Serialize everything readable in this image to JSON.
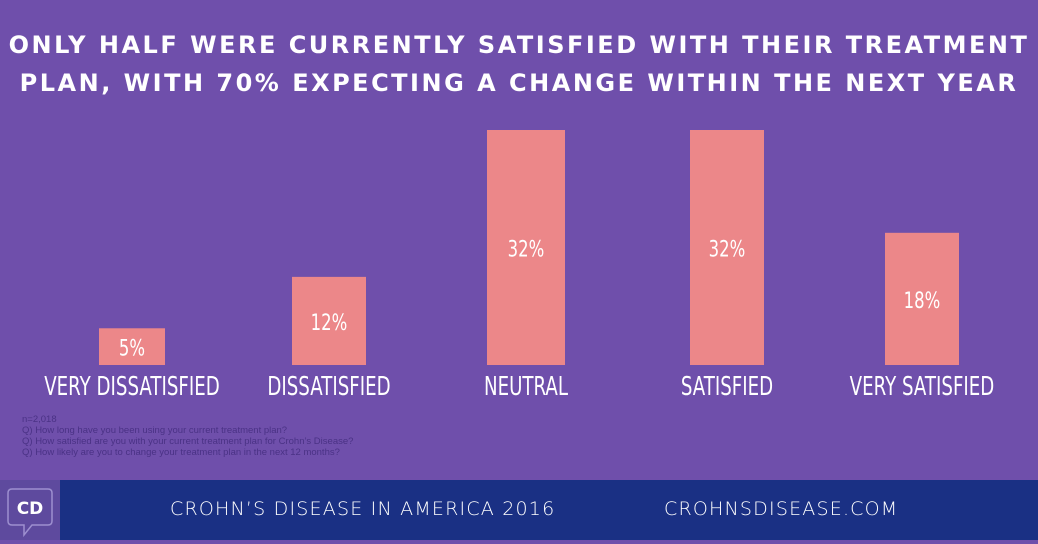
{
  "title": {
    "line1": "Only half were currently satisfied with their treatment",
    "line2": "plan, with 70% expecting a change within the next year"
  },
  "chart_data": {
    "type": "bar",
    "title": "Only half were currently satisfied with their treatment plan, with 70% expecting a change within the next year",
    "categories": [
      "VERY DISSATISFIED",
      "DISSATISFIED",
      "NEUTRAL",
      "SATISFIED",
      "VERY SATISFIED"
    ],
    "values": [
      5,
      12,
      32,
      32,
      18
    ],
    "value_labels": [
      "5%",
      "12%",
      "32%",
      "32%",
      "18%"
    ],
    "unit": "%",
    "xlabel": "",
    "ylabel": "",
    "ylim": [
      0,
      32
    ],
    "grid": false,
    "colors": {
      "background": "#6f4fab",
      "bar": "#ec8789",
      "label": "#ffffff"
    }
  },
  "notes": {
    "sample": "n=2,018",
    "questions": [
      "Q) How long have you been using your current treatment plan?",
      "Q) How satisfied are you with your current treatment plan for Crohn’s Disease?",
      "Q) How likely are you to change your treatment plan in the next 12 months?"
    ]
  },
  "footer": {
    "logo": "CD",
    "logo_icon": "speech-bubble-icon",
    "report": "CROHN’S DISEASE IN AMERICA 2016",
    "site": "CROHNSDISEASE.COM",
    "colors": {
      "footer_bg": "#1a3084",
      "logo_bg": "#5e4a9e"
    }
  }
}
